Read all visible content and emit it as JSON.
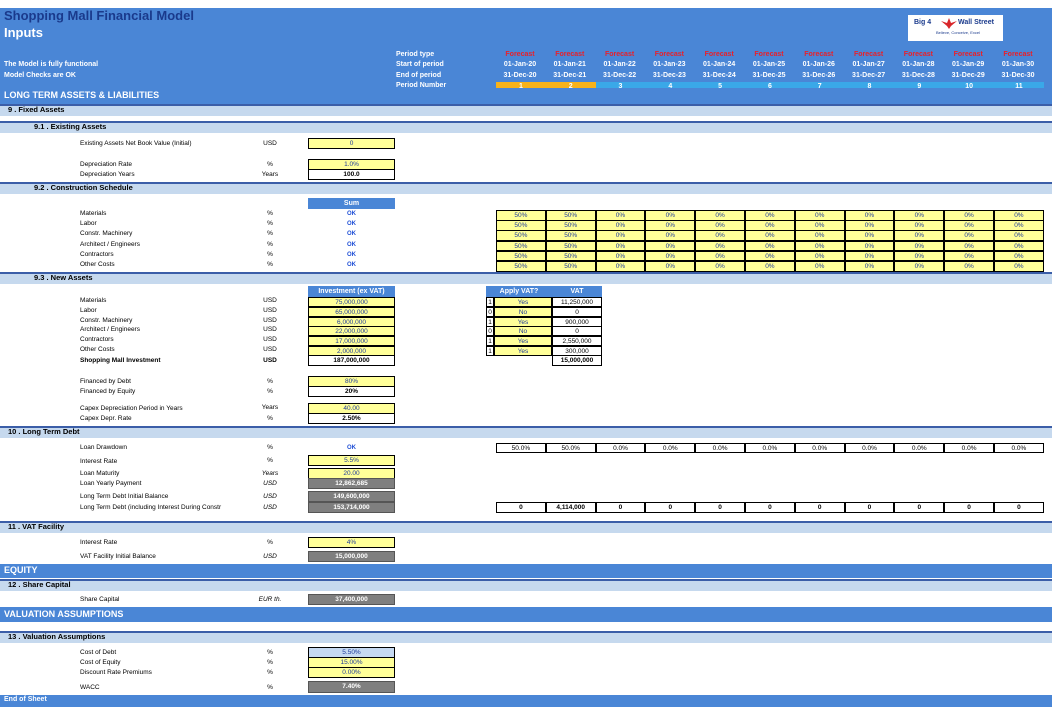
{
  "title": "Shopping Mall Financial Model",
  "subtitle": "Inputs",
  "logo": {
    "text_left": "Big 4",
    "text_right": "Wall Street",
    "tagline": "Believe, Conceive, Excel"
  },
  "status": {
    "line1": "The Model is fully functional",
    "line2": "Model Checks are OK"
  },
  "period_labels": {
    "type": "Period type",
    "start": "Start of period",
    "end": "End of period",
    "number": "Period Number"
  },
  "periods": [
    {
      "type": "Forecast",
      "start": "01-Jan-20",
      "end": "31-Dec-20",
      "num": "1"
    },
    {
      "type": "Forecast",
      "start": "01-Jan-21",
      "end": "31-Dec-21",
      "num": "2"
    },
    {
      "type": "Forecast",
      "start": "01-Jan-22",
      "end": "31-Dec-22",
      "num": "3"
    },
    {
      "type": "Forecast",
      "start": "01-Jan-23",
      "end": "31-Dec-23",
      "num": "4"
    },
    {
      "type": "Forecast",
      "start": "01-Jan-24",
      "end": "31-Dec-24",
      "num": "5"
    },
    {
      "type": "Forecast",
      "start": "01-Jan-25",
      "end": "31-Dec-25",
      "num": "6"
    },
    {
      "type": "Forecast",
      "start": "01-Jan-26",
      "end": "31-Dec-26",
      "num": "7"
    },
    {
      "type": "Forecast",
      "start": "01-Jan-27",
      "end": "31-Dec-27",
      "num": "8"
    },
    {
      "type": "Forecast",
      "start": "01-Jan-28",
      "end": "31-Dec-28",
      "num": "9"
    },
    {
      "type": "Forecast",
      "start": "01-Jan-29",
      "end": "31-Dec-29",
      "num": "10"
    },
    {
      "type": "Forecast",
      "start": "01-Jan-30",
      "end": "31-Dec-30",
      "num": "11"
    }
  ],
  "sections": {
    "ltal": "LONG TERM ASSETS & LIABILITIES",
    "fixed": "9 . Fixed Assets",
    "existing": "9.1 .  Existing Assets",
    "construction": "9.2 .  Construction Schedule",
    "newassets": "9.3 .  New Assets",
    "debt": "10 . Long Term Debt",
    "vat": "11 . VAT Facility",
    "equity": "EQUITY",
    "share": "12 . Share Capital",
    "valuation": "VALUATION ASSUMPTIONS",
    "valassump": "13 . Valuation Assumptions",
    "end": "End of Sheet"
  },
  "existing": {
    "nbv": {
      "label": "Existing Assets Net Book Value (Initial)",
      "unit": "USD",
      "value": "0"
    },
    "rate": {
      "label": "Depreciation Rate",
      "unit": "%",
      "value": "1.0%"
    },
    "years": {
      "label": "Depreciation Years",
      "unit": "Years",
      "value": "100.0"
    }
  },
  "construction": {
    "sum_header": "Sum",
    "rows": [
      {
        "label": "Materials",
        "unit": "%",
        "check": "OK",
        "values": [
          "50%",
          "50%",
          "0%",
          "0%",
          "0%",
          "0%",
          "0%",
          "0%",
          "0%",
          "0%",
          "0%"
        ]
      },
      {
        "label": "Labor",
        "unit": "%",
        "check": "OK",
        "values": [
          "50%",
          "50%",
          "0%",
          "0%",
          "0%",
          "0%",
          "0%",
          "0%",
          "0%",
          "0%",
          "0%"
        ]
      },
      {
        "label": "Constr. Machinery",
        "unit": "%",
        "check": "OK",
        "values": [
          "50%",
          "50%",
          "0%",
          "0%",
          "0%",
          "0%",
          "0%",
          "0%",
          "0%",
          "0%",
          "0%"
        ]
      },
      {
        "label": "Architect / Engineers",
        "unit": "%",
        "check": "OK",
        "values": [
          "50%",
          "50%",
          "0%",
          "0%",
          "0%",
          "0%",
          "0%",
          "0%",
          "0%",
          "0%",
          "0%"
        ]
      },
      {
        "label": "Contractors",
        "unit": "%",
        "check": "OK",
        "values": [
          "50%",
          "50%",
          "0%",
          "0%",
          "0%",
          "0%",
          "0%",
          "0%",
          "0%",
          "0%",
          "0%"
        ]
      },
      {
        "label": "Other Costs",
        "unit": "%",
        "check": "OK",
        "values": [
          "50%",
          "50%",
          "0%",
          "0%",
          "0%",
          "0%",
          "0%",
          "0%",
          "0%",
          "0%",
          "0%"
        ]
      }
    ]
  },
  "newassets": {
    "inv_header": "Investment (ex VAT)",
    "vat_apply_header": "Apply VAT?",
    "vat_header": "VAT",
    "rows": [
      {
        "label": "Materials",
        "unit": "USD",
        "inv": "75,000,000",
        "flag": "1",
        "apply": "Yes",
        "vat": "11,250,000"
      },
      {
        "label": "Labor",
        "unit": "USD",
        "inv": "65,000,000",
        "flag": "0",
        "apply": "No",
        "vat": "0"
      },
      {
        "label": "Constr. Machinery",
        "unit": "USD",
        "inv": "6,000,000",
        "flag": "1",
        "apply": "Yes",
        "vat": "900,000"
      },
      {
        "label": "Architect / Engineers",
        "unit": "USD",
        "inv": "22,000,000",
        "flag": "0",
        "apply": "No",
        "vat": "0"
      },
      {
        "label": "Contractors",
        "unit": "USD",
        "inv": "17,000,000",
        "flag": "1",
        "apply": "Yes",
        "vat": "2,550,000"
      },
      {
        "label": "Other Costs",
        "unit": "USD",
        "inv": "2,000,000",
        "flag": "1",
        "apply": "Yes",
        "vat": "300,000"
      }
    ],
    "total": {
      "label": "Shopping Mall Investment",
      "unit": "USD",
      "inv": "187,000,000",
      "vat": "15,000,000"
    },
    "debt": {
      "label": "Financed by Debt",
      "unit": "%",
      "value": "80%"
    },
    "equity": {
      "label": "Financed by Equity",
      "unit": "%",
      "value": "20%"
    },
    "capex_period": {
      "label": "Capex Depreciation Period in Years",
      "unit": "Years",
      "value": "40.00"
    },
    "capex_rate": {
      "label": "Capex Depr. Rate",
      "unit": "%",
      "value": "2.50%"
    }
  },
  "debt": {
    "drawdown": {
      "label": "Loan Drawdown",
      "unit": "%",
      "check": "OK",
      "values": [
        "50.0%",
        "50.0%",
        "0.0%",
        "0.0%",
        "0.0%",
        "0.0%",
        "0.0%",
        "0.0%",
        "0.0%",
        "0.0%",
        "0.0%"
      ]
    },
    "interest": {
      "label": "Interest Rate",
      "unit": "%",
      "value": "5.5%"
    },
    "maturity": {
      "label": "Loan Maturity",
      "unit": "Years",
      "value": "20.00"
    },
    "yearly": {
      "label": "Loan Yearly Payment",
      "unit": "USD",
      "value": "12,862,685"
    },
    "initial": {
      "label": "Long Term Debt Initial Balance",
      "unit": "USD",
      "value": "149,600,000"
    },
    "incl": {
      "label": "Long Term Debt (including Interest During Constr",
      "unit": "USD",
      "value": "153,714,000",
      "values": [
        "0",
        "4,114,000",
        "0",
        "0",
        "0",
        "0",
        "0",
        "0",
        "0",
        "0",
        "0"
      ]
    }
  },
  "vat": {
    "interest": {
      "label": "Interest Rate",
      "unit": "%",
      "value": "4%"
    },
    "initial": {
      "label": "VAT Facility Initial Balance",
      "unit": "USD",
      "value": "15,000,000"
    }
  },
  "share": {
    "label": "Share Capital",
    "unit": "EUR th.",
    "value": "37,400,000"
  },
  "valuation": {
    "cod": {
      "label": "Cost of Debt",
      "unit": "%",
      "value": "5.50%"
    },
    "coe": {
      "label": "Cost of Equity",
      "unit": "%",
      "value": "15.00%"
    },
    "drp": {
      "label": "Discount Rate Premiums",
      "unit": "%",
      "value": "0.00%"
    },
    "wacc": {
      "label": "WACC",
      "unit": "%",
      "value": "7.40%"
    }
  },
  "colors": {
    "header_blue": "#4a86d6",
    "forecast_red": "#e8202a",
    "input_yellow": "#ffff99",
    "period_orange": "#f7b21b",
    "period_cyan": "#3aa8e8"
  }
}
